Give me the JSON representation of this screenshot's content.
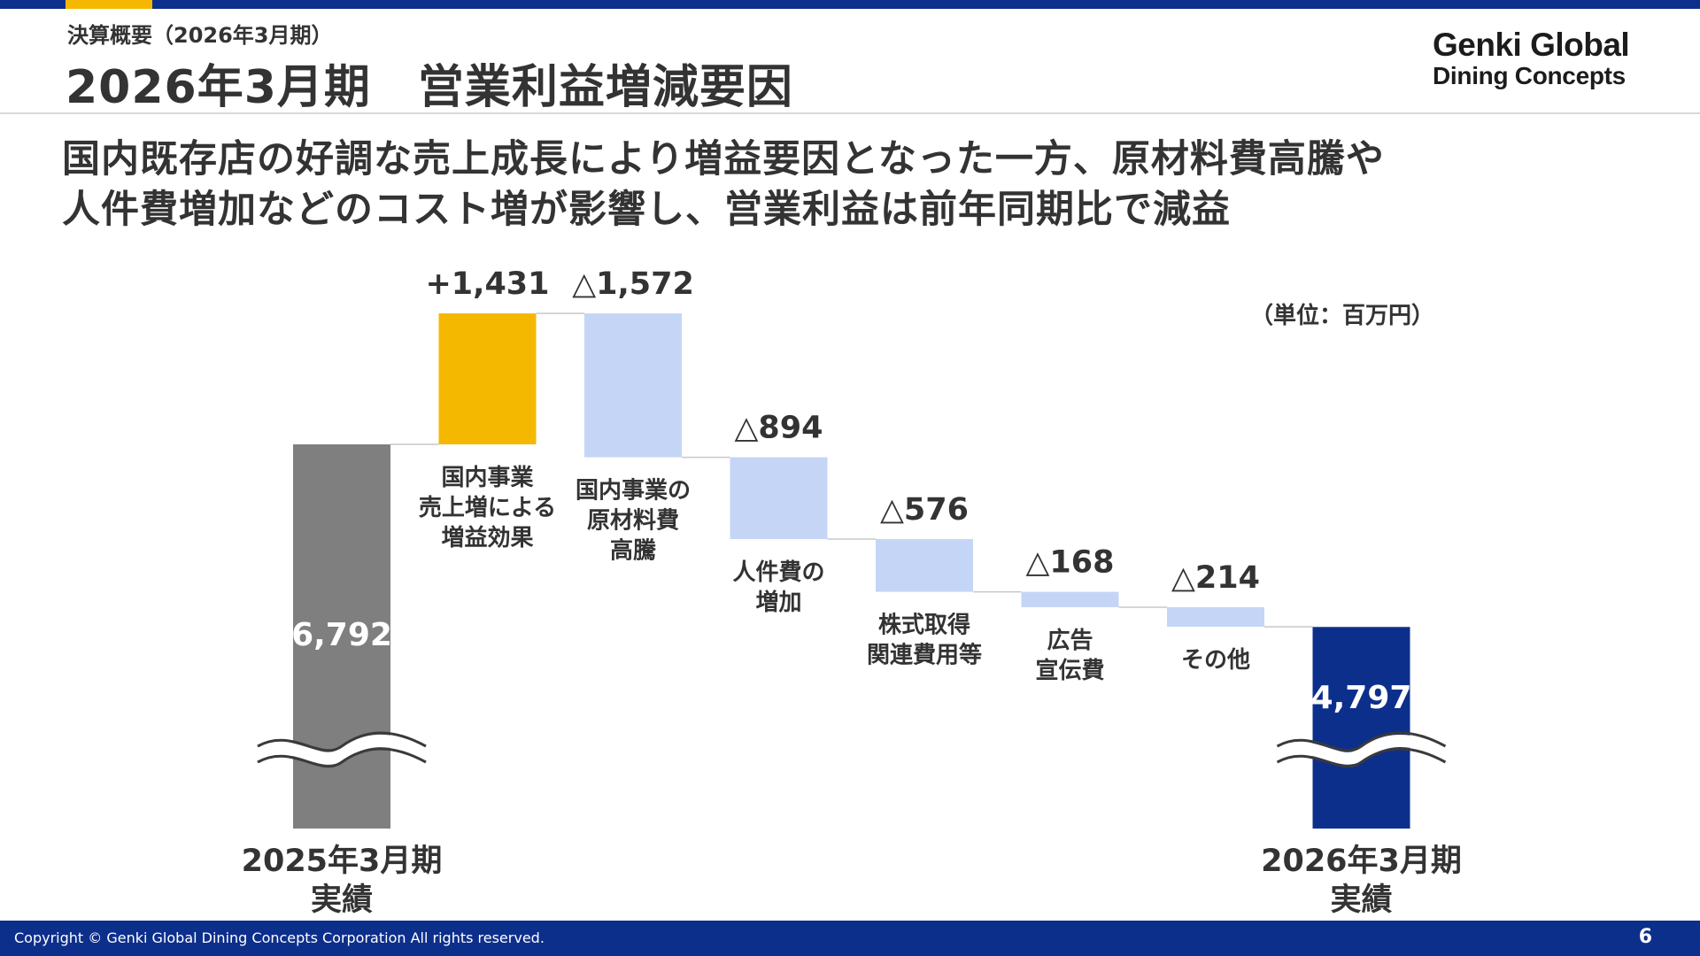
{
  "header": {
    "section_label": "決算概要（2026年3月期）",
    "title": "2026年3月期　営業利益増減要因",
    "logo_line1": "Genki Global",
    "logo_line2": "Dining Concepts"
  },
  "headline": {
    "line1": "国内既存店の好調な売上成長により増益要因となった一方、原材料費高騰や",
    "line2": "人件費増加などのコスト増が影響し、営業利益は前年同期比で減益"
  },
  "unit_label": "（単位：百万円）",
  "chart_data": {
    "type": "waterfall",
    "title": "",
    "unit": "百万円",
    "axis_break": true,
    "steps": [
      {
        "kind": "total",
        "label_lines": [
          "2025年3月期",
          "実績"
        ],
        "value": 6792,
        "value_label": "6,792",
        "color": "#7f7f7f"
      },
      {
        "kind": "delta",
        "label_lines": [
          "国内事業",
          "売上増による",
          "増益効果"
        ],
        "value": 1431,
        "value_label": "+1,431",
        "color": "#f5b800"
      },
      {
        "kind": "delta",
        "label_lines": [
          "国内事業の",
          "原材料費",
          "高騰"
        ],
        "value": -1572,
        "value_label": "△1,572",
        "color": "#c5d5f5"
      },
      {
        "kind": "delta",
        "label_lines": [
          "人件費の",
          "増加"
        ],
        "value": -894,
        "value_label": "△894",
        "color": "#c5d5f5"
      },
      {
        "kind": "delta",
        "label_lines": [
          "株式取得",
          "関連費用等"
        ],
        "value": -576,
        "value_label": "△576",
        "color": "#c5d5f5"
      },
      {
        "kind": "delta",
        "label_lines": [
          "広告",
          "宣伝費"
        ],
        "value": -168,
        "value_label": "△168",
        "color": "#c5d5f5"
      },
      {
        "kind": "delta",
        "label_lines": [
          "その他"
        ],
        "value": -214,
        "value_label": "△214",
        "color": "#c5d5f5"
      },
      {
        "kind": "total",
        "label_lines": [
          "2026年3月期",
          "実績"
        ],
        "value": 4797,
        "value_label": "4,797",
        "color": "#0d2f8c"
      }
    ]
  },
  "footer": {
    "copyright": "Copyright © Genki Global Dining Concepts Corporation All rights reserved.",
    "page_number": "6"
  }
}
